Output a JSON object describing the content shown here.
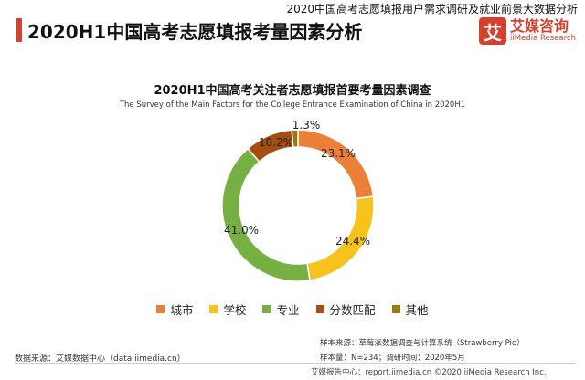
{
  "header": {
    "report_title": "2020中国高考志愿填报用户需求调研及就业前景大数据分析",
    "page_title": "2020H1中国高考志愿填报考量因素分析",
    "brand_logo_char": "艾",
    "brand_name": "艾媒咨询",
    "brand_name_en": "iiMedia Research",
    "accent_color": "#d6402f"
  },
  "chart_data": {
    "type": "pie",
    "donut": true,
    "title": "2020H1中国高考关注者志愿填报首要考量因素调查",
    "subtitle": "The Survey of the Main Factors for the College Entrance Examination of China in 2020H1",
    "categories": [
      "城市",
      "学校",
      "专业",
      "分数匹配",
      "其他"
    ],
    "values": [
      23.1,
      24.4,
      41.0,
      10.2,
      1.3
    ],
    "labels": [
      "23.1%",
      "24.4%",
      "41.0%",
      "10.2%",
      "1.3%"
    ],
    "colors": [
      "#ec8038",
      "#f6c21b",
      "#76b043",
      "#a64d12",
      "#9a7a10"
    ],
    "legend_position": "bottom"
  },
  "footer": {
    "source": "数据来源：艾媒数据中心（data.iimedia.cn）",
    "sample_source": "样本来源：草莓派数据调查与计算系统（Strawberry Pie）",
    "sample_size": "样本量：N=234；调研时间：2020年5月",
    "copyright": "艾媒报告中心：report.iimedia.cn  ©2020  iiMedia Research  Inc."
  }
}
